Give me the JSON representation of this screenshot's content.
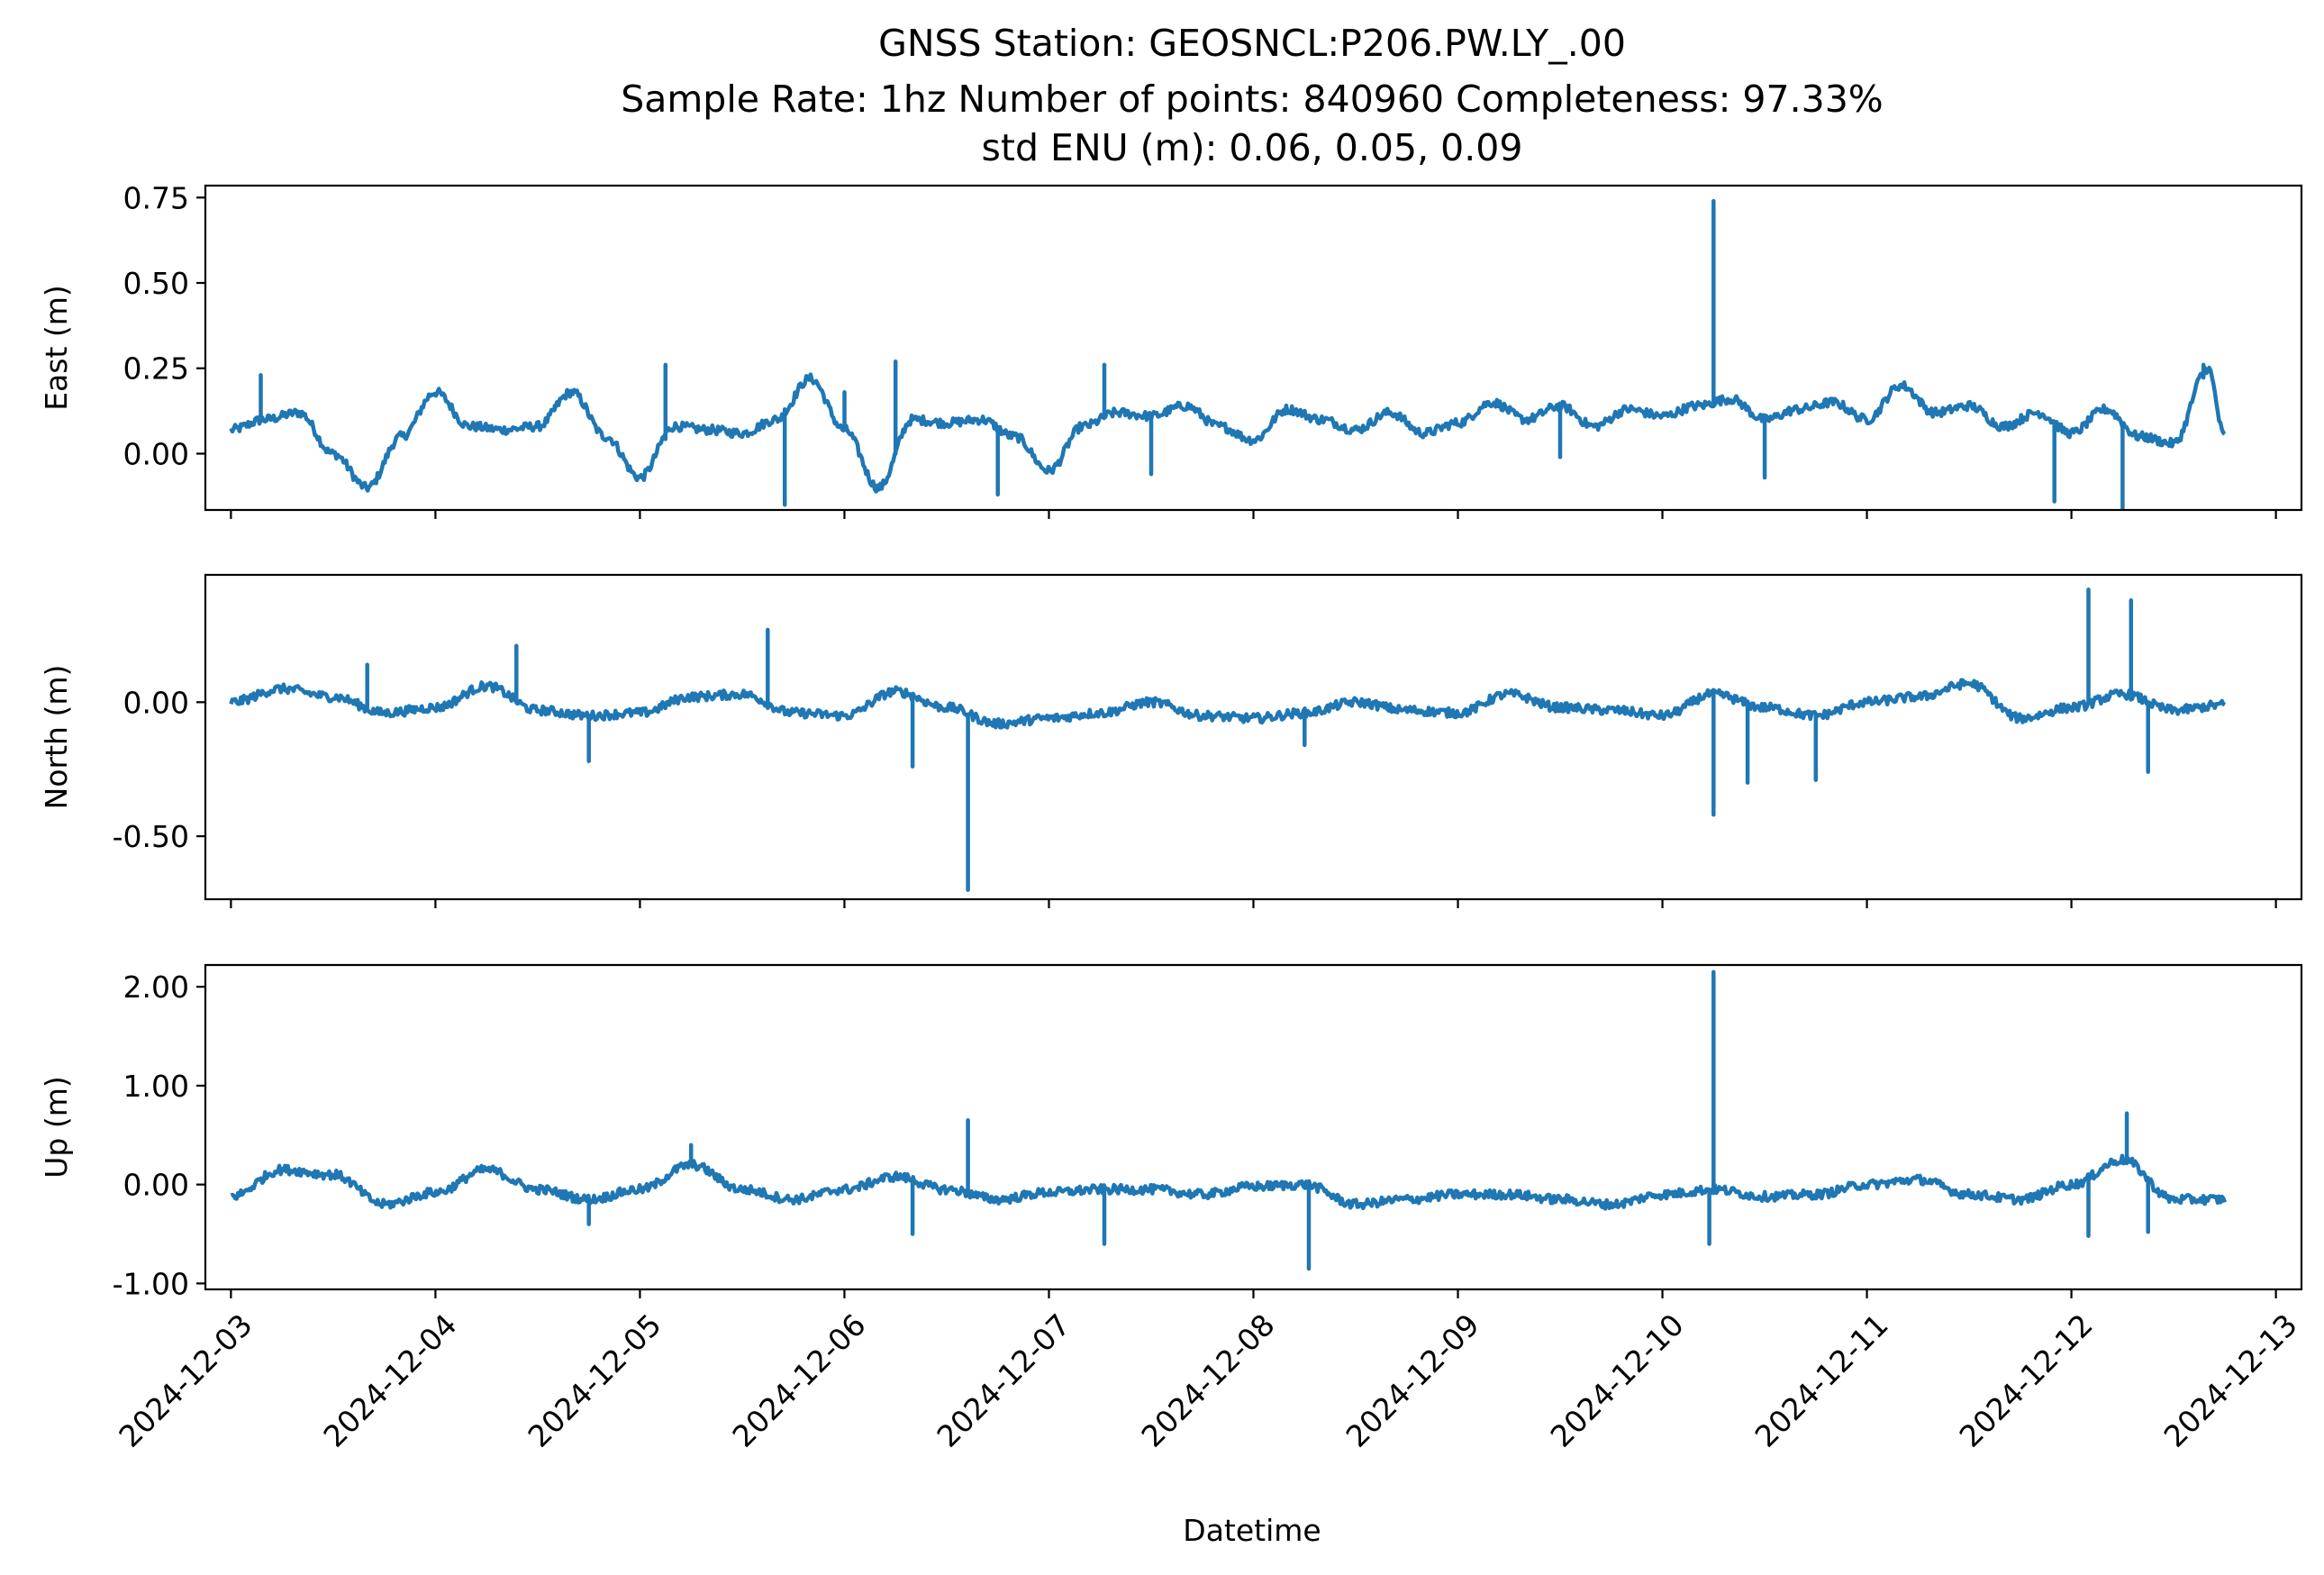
{
  "title": {
    "line1": "GNSS Station: GEOSNCL:P206.PW.LY_.00",
    "line2": "Sample Rate: 1hz   Number of points: 840960    Completeness:  97.33%",
    "line3": "std ENU (m):  0.06, 0.05, 0.09"
  },
  "xlabel": "Datetime",
  "colors": {
    "series": "#1f77b4",
    "axes": "#000000",
    "background": "#ffffff"
  },
  "chart_data": [
    {
      "type": "line",
      "ylabel": "East (m)",
      "xlim": [
        "2024-12-02T21:00",
        "2024-12-13T03:00"
      ],
      "ylim": [
        -0.165,
        0.785
      ],
      "yticks": [
        0.0,
        0.25,
        0.5,
        0.75
      ],
      "ytick_labels": [
        "0.00",
        "0.25",
        "0.50",
        "0.75"
      ],
      "xticks": [
        "2024-12-03",
        "2024-12-04",
        "2024-12-05",
        "2024-12-06",
        "2024-12-07",
        "2024-12-08",
        "2024-12-09",
        "2024-12-10",
        "2024-12-11",
        "2024-12-12",
        "2024-12-13"
      ],
      "xtick_labels_visible": false,
      "grid": false,
      "series": [
        {
          "x": [
            "2024-12-03T00:00",
            "2024-12-03T04:00",
            "2024-12-03T08:00",
            "2024-12-03T12:00",
            "2024-12-03T16:00",
            "2024-12-03T20:00",
            "2024-12-04T00:00",
            "2024-12-04T04:00",
            "2024-12-04T08:00",
            "2024-12-04T12:00",
            "2024-12-04T16:00",
            "2024-12-04T20:00",
            "2024-12-05T00:00",
            "2024-12-05T04:00",
            "2024-12-05T08:00",
            "2024-12-05T12:00",
            "2024-12-05T16:00",
            "2024-12-05T20:00",
            "2024-12-06T00:00",
            "2024-12-06T04:00",
            "2024-12-06T08:00",
            "2024-12-06T12:00",
            "2024-12-06T16:00",
            "2024-12-06T20:00",
            "2024-12-07T00:00",
            "2024-12-07T04:00",
            "2024-12-07T08:00",
            "2024-12-07T12:00",
            "2024-12-07T16:00",
            "2024-12-07T20:00",
            "2024-12-08T00:00",
            "2024-12-08T04:00",
            "2024-12-08T08:00",
            "2024-12-08T12:00",
            "2024-12-08T16:00",
            "2024-12-08T20:00",
            "2024-12-09T00:00",
            "2024-12-09T04:00",
            "2024-12-09T08:00",
            "2024-12-09T12:00",
            "2024-12-09T16:00",
            "2024-12-09T20:00",
            "2024-12-10T00:00",
            "2024-12-10T04:00",
            "2024-12-10T08:00",
            "2024-12-10T12:00",
            "2024-12-10T16:00",
            "2024-12-10T20:00",
            "2024-12-11T00:00",
            "2024-12-11T04:00",
            "2024-12-11T08:00",
            "2024-12-11T12:00",
            "2024-12-11T16:00",
            "2024-12-11T20:00",
            "2024-12-12T00:00",
            "2024-12-12T04:00",
            "2024-12-12T08:00",
            "2024-12-12T12:00",
            "2024-12-12T16:00",
            "2024-12-12T18:00"
          ],
          "y": [
            0.07,
            0.1,
            0.12,
            0.0,
            -0.1,
            0.05,
            0.18,
            0.08,
            0.07,
            0.08,
            0.18,
            0.05,
            -0.07,
            0.08,
            0.07,
            0.06,
            0.1,
            0.22,
            0.07,
            -0.1,
            0.1,
            0.09,
            0.1,
            0.05,
            -0.05,
            0.08,
            0.12,
            0.11,
            0.14,
            0.08,
            0.04,
            0.13,
            0.1,
            0.07,
            0.12,
            0.06,
            0.09,
            0.15,
            0.1,
            0.14,
            0.08,
            0.13,
            0.11,
            0.14,
            0.16,
            0.1,
            0.13,
            0.15,
            0.1,
            0.2,
            0.12,
            0.14,
            0.08,
            0.12,
            0.06,
            0.13,
            0.05,
            0.03,
            0.25,
            0.05
          ],
          "spikes": [
            {
              "x": "2024-12-03T03:30",
              "y": 0.23
            },
            {
              "x": "2024-12-04T14:00",
              "y": 0.14
            },
            {
              "x": "2024-12-05T03:00",
              "y": 0.26
            },
            {
              "x": "2024-12-05T17:00",
              "y": -0.15
            },
            {
              "x": "2024-12-06T00:00",
              "y": 0.18
            },
            {
              "x": "2024-12-06T06:00",
              "y": 0.27
            },
            {
              "x": "2024-12-06T18:00",
              "y": -0.12
            },
            {
              "x": "2024-12-07T06:30",
              "y": 0.26
            },
            {
              "x": "2024-12-07T12:00",
              "y": -0.06
            },
            {
              "x": "2024-12-09T12:00",
              "y": -0.01
            },
            {
              "x": "2024-12-10T06:00",
              "y": 0.74
            },
            {
              "x": "2024-12-10T12:00",
              "y": -0.07
            },
            {
              "x": "2024-12-11T22:00",
              "y": -0.14
            },
            {
              "x": "2024-12-12T06:00",
              "y": -0.16
            },
            {
              "x": "2024-12-12T15:30",
              "y": 0.26
            }
          ]
        }
      ]
    },
    {
      "type": "line",
      "ylabel": "North (m)",
      "xlim": [
        "2024-12-02T21:00",
        "2024-12-13T03:00"
      ],
      "ylim": [
        -0.735,
        0.475
      ],
      "yticks": [
        -0.5,
        0.0
      ],
      "ytick_labels": [
        "-0.50",
        "0.00"
      ],
      "xticks": [
        "2024-12-03",
        "2024-12-04",
        "2024-12-05",
        "2024-12-06",
        "2024-12-07",
        "2024-12-08",
        "2024-12-09",
        "2024-12-10",
        "2024-12-11",
        "2024-12-12",
        "2024-12-13"
      ],
      "xtick_labels_visible": false,
      "grid": false,
      "series": [
        {
          "x": [
            "2024-12-03T00:00",
            "2024-12-03T06:00",
            "2024-12-03T12:00",
            "2024-12-03T18:00",
            "2024-12-04T00:00",
            "2024-12-04T06:00",
            "2024-12-04T12:00",
            "2024-12-04T18:00",
            "2024-12-05T00:00",
            "2024-12-05T06:00",
            "2024-12-05T12:00",
            "2024-12-05T18:00",
            "2024-12-06T00:00",
            "2024-12-06T06:00",
            "2024-12-06T12:00",
            "2024-12-06T18:00",
            "2024-12-07T00:00",
            "2024-12-07T06:00",
            "2024-12-07T12:00",
            "2024-12-07T18:00",
            "2024-12-08T00:00",
            "2024-12-08T06:00",
            "2024-12-08T12:00",
            "2024-12-08T18:00",
            "2024-12-09T00:00",
            "2024-12-09T06:00",
            "2024-12-09T12:00",
            "2024-12-09T18:00",
            "2024-12-10T00:00",
            "2024-12-10T06:00",
            "2024-12-10T12:00",
            "2024-12-10T18:00",
            "2024-12-11T00:00",
            "2024-12-11T06:00",
            "2024-12-11T12:00",
            "2024-12-11T18:00",
            "2024-12-12T00:00",
            "2024-12-12T06:00",
            "2024-12-12T12:00",
            "2024-12-12T18:00"
          ],
          "y": [
            0.0,
            0.05,
            0.02,
            -0.04,
            -0.02,
            0.06,
            -0.03,
            -0.05,
            -0.04,
            0.02,
            0.03,
            -0.04,
            -0.05,
            0.04,
            -0.02,
            -0.08,
            -0.06,
            -0.04,
            0.0,
            -0.05,
            -0.06,
            -0.04,
            0.0,
            -0.03,
            -0.04,
            0.03,
            -0.02,
            -0.03,
            -0.05,
            0.03,
            -0.02,
            -0.05,
            0.0,
            0.02,
            0.07,
            -0.06,
            -0.02,
            0.03,
            -0.03,
            -0.01
          ],
          "spikes": [
            {
              "x": "2024-12-03T16:00",
              "y": 0.14
            },
            {
              "x": "2024-12-04T09:30",
              "y": 0.21
            },
            {
              "x": "2024-12-04T18:00",
              "y": -0.22
            },
            {
              "x": "2024-12-05T15:00",
              "y": 0.27
            },
            {
              "x": "2024-12-06T08:00",
              "y": -0.24
            },
            {
              "x": "2024-12-06T14:30",
              "y": -0.7
            },
            {
              "x": "2024-12-08T06:00",
              "y": -0.16
            },
            {
              "x": "2024-12-10T06:00",
              "y": -0.42
            },
            {
              "x": "2024-12-10T10:00",
              "y": -0.3
            },
            {
              "x": "2024-12-10T18:00",
              "y": -0.29
            },
            {
              "x": "2024-12-12T02:00",
              "y": 0.42
            },
            {
              "x": "2024-12-12T07:00",
              "y": 0.38
            },
            {
              "x": "2024-12-12T09:00",
              "y": -0.26
            }
          ]
        }
      ]
    },
    {
      "type": "line",
      "ylabel": "Up (m)",
      "xlim": [
        "2024-12-02T21:00",
        "2024-12-13T03:00"
      ],
      "ylim": [
        -1.06,
        2.22
      ],
      "yticks": [
        -1.0,
        0.0,
        1.0,
        2.0
      ],
      "ytick_labels": [
        "-1.00",
        "0.00",
        "1.00",
        "2.00"
      ],
      "xticks": [
        "2024-12-03",
        "2024-12-04",
        "2024-12-05",
        "2024-12-06",
        "2024-12-07",
        "2024-12-08",
        "2024-12-09",
        "2024-12-10",
        "2024-12-11",
        "2024-12-12",
        "2024-12-13"
      ],
      "xtick_labels": [
        "2024-12-03",
        "2024-12-04",
        "2024-12-05",
        "2024-12-06",
        "2024-12-07",
        "2024-12-08",
        "2024-12-09",
        "2024-12-10",
        "2024-12-11",
        "2024-12-12",
        "2024-12-13"
      ],
      "xtick_labels_visible": true,
      "grid": false,
      "series": [
        {
          "x": [
            "2024-12-03T00:00",
            "2024-12-03T06:00",
            "2024-12-03T12:00",
            "2024-12-03T18:00",
            "2024-12-04T00:00",
            "2024-12-04T06:00",
            "2024-12-04T12:00",
            "2024-12-04T18:00",
            "2024-12-05T00:00",
            "2024-12-05T06:00",
            "2024-12-05T12:00",
            "2024-12-05T18:00",
            "2024-12-06T00:00",
            "2024-12-06T06:00",
            "2024-12-06T12:00",
            "2024-12-06T18:00",
            "2024-12-07T00:00",
            "2024-12-07T06:00",
            "2024-12-07T12:00",
            "2024-12-07T18:00",
            "2024-12-08T00:00",
            "2024-12-08T06:00",
            "2024-12-08T12:00",
            "2024-12-08T18:00",
            "2024-12-09T00:00",
            "2024-12-09T06:00",
            "2024-12-09T12:00",
            "2024-12-09T18:00",
            "2024-12-10T00:00",
            "2024-12-10T06:00",
            "2024-12-10T12:00",
            "2024-12-10T18:00",
            "2024-12-11T00:00",
            "2024-12-11T06:00",
            "2024-12-11T12:00",
            "2024-12-11T18:00",
            "2024-12-12T00:00",
            "2024-12-12T06:00",
            "2024-12-12T12:00",
            "2024-12-12T18:00"
          ],
          "y": [
            -0.12,
            0.15,
            0.1,
            -0.2,
            -0.08,
            0.15,
            -0.05,
            -0.15,
            -0.05,
            0.2,
            -0.05,
            -0.15,
            -0.05,
            0.08,
            -0.05,
            -0.15,
            -0.08,
            -0.05,
            -0.05,
            -0.1,
            -0.02,
            0.0,
            -0.2,
            -0.15,
            -0.1,
            -0.1,
            -0.15,
            -0.2,
            -0.1,
            -0.05,
            -0.12,
            -0.1,
            0.0,
            0.05,
            -0.1,
            -0.15,
            0.0,
            0.25,
            -0.15,
            -0.15
          ],
          "spikes": [
            {
              "x": "2024-12-04T18:00",
              "y": -0.4
            },
            {
              "x": "2024-12-05T06:00",
              "y": 0.4
            },
            {
              "x": "2024-12-06T08:00",
              "y": -0.5
            },
            {
              "x": "2024-12-06T14:30",
              "y": 0.65
            },
            {
              "x": "2024-12-07T06:30",
              "y": -0.6
            },
            {
              "x": "2024-12-08T06:30",
              "y": -0.85
            },
            {
              "x": "2024-12-10T06:00",
              "y": 2.15
            },
            {
              "x": "2024-12-10T05:30",
              "y": -0.6
            },
            {
              "x": "2024-12-12T02:00",
              "y": -0.52
            },
            {
              "x": "2024-12-12T06:30",
              "y": 0.72
            },
            {
              "x": "2024-12-12T09:00",
              "y": -0.48
            }
          ]
        }
      ]
    }
  ]
}
